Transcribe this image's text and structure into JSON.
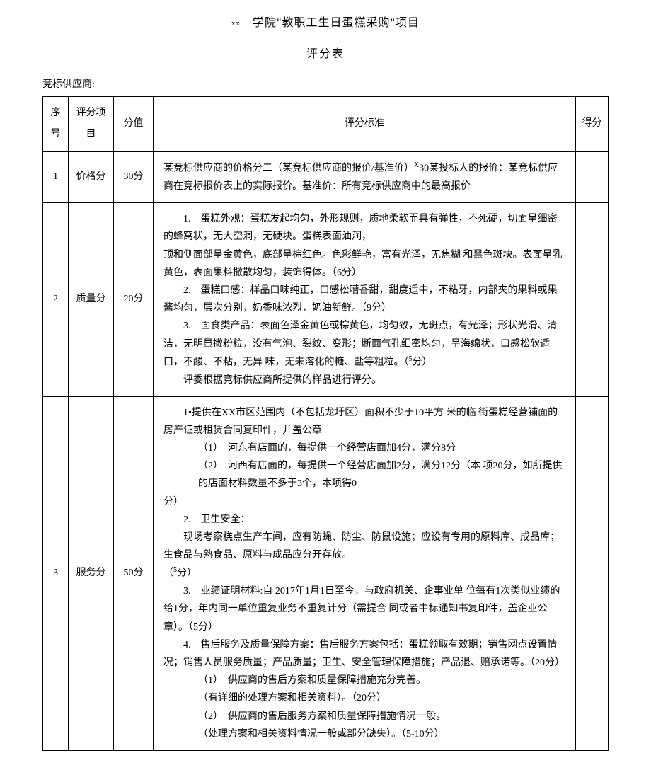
{
  "header": {
    "xx": "xx",
    "title": "学院\"教职工生日蛋糕采购\"项目",
    "subtitle": "评分表",
    "supplier_label": "竞标供应商:"
  },
  "columns": {
    "seq": "序号",
    "item": "评分项目",
    "score": "分值",
    "criteria": "评分标准",
    "got": "得分"
  },
  "rows": [
    {
      "seq": "1",
      "item": "价格分",
      "score": "30分",
      "criteria_html": "某竞标供应商的价格分二（某竞标供应商的报价/基准价）<sup>X</sup>30某投标人的报价：某竞标供应商在竞标报价表上的实际报价。基准价：所有竞标供应商中的最高报价"
    },
    {
      "seq": "2",
      "item": "质量分",
      "score": "20分",
      "criteria_html": "<span class=\"indent\">1.　蛋糕外观：蛋糕发起均匀，外形规则，质地柔软而具有弹性，不死硬，切面呈细密的蜂窝状，无大空洞，无硬块。蛋糕表面油润，</span>顶和侧面部呈金黄色，底部呈棕红色。色彩鲜艳，富有光泽，无焦糊 和黑色斑块。表面呈乳黄色，表面果料撒散均匀，装饰得体。（6分）<br><span class=\"indent\">2.　蛋糕口感：样品口味纯正，口感松嘈香甜，甜度适中，不粘牙，内部夹的果料或果酱均匀，层次分别，奶香味浓烈，奶油新鲜。（9分）</span><span class=\"indent\">3.　面食类产品：表面色泽金黄色或棕黄色，均匀致，无斑点，有光泽；形状光滑、清洁，无明显撒粉粒，没有气泡、裂纹、变形；断面气孔细密均匀，呈海绵状，口感松软适口，不酸、不粘，无异 味，无未溶化的糖、盐等粗粒。（<sup>5</sup>分）</span><span class=\"indent\">评委根据竞标供应商所提供的样品进行评分。</span>"
    },
    {
      "seq": "3",
      "item": "服务分",
      "score": "50分",
      "criteria_html": "<span class=\"indent\">1•提供在XX市区范围内（不包括龙圩区）面积不少于10平方 米的临 街蛋糕经营铺面的房产证或租赁合同复印件，并盖公章</span><span class=\"indent2\">（1）　河东有店面的，每提供一个经营店面加4分，满分8分</span><span class=\"indent2\">（2）　河西有店面的，每提供一个经营店面加2分，满分12分（本 项20分，如所提供的店面材料数量不多于3个，本项得0</span>分）<br><span class=\"indent\">2.　卫生安全：</span><span class=\"indent\">现场考察糕点生产车间，应有防蝇、防尘、防鼠设施；应设有专用的原料库、成品库；生食品与熟食品、原料与成品应分开存放。</span>（<sup>5</sup>分）<br><span class=\"indent\">3.　业绩证明材料:自 2017年1月1日至今，与政府机关、企事业单 位每有1次类似业绩的给1分，年内同一单位重复业务不重复计分（需提合 同或者中标通知书复印件，盖企业公章）。（5分）</span><span class=\"indent\">4.　售后服务及质量保障方案：售后服务方案包括：蛋糕领取有效期；销售网点设置情况；销售人员服务质量；产品质量；卫生、安全管理保障措施；产品退、赔承诺等。（20分）</span><span class=\"indent2\">（1）　供应商的售后方案和质量保障措施充分完善。</span><span class=\"indent2\">（有详细的处理方案和相关资料）。（20分）</span><span class=\"indent2\">（2）　供应商的售后服务方案和质量保障措施情况一般。</span><span class=\"indent2\">（处理方案和相关资料情况一般或部分缺失）。（5-10分）</span>"
    }
  ]
}
